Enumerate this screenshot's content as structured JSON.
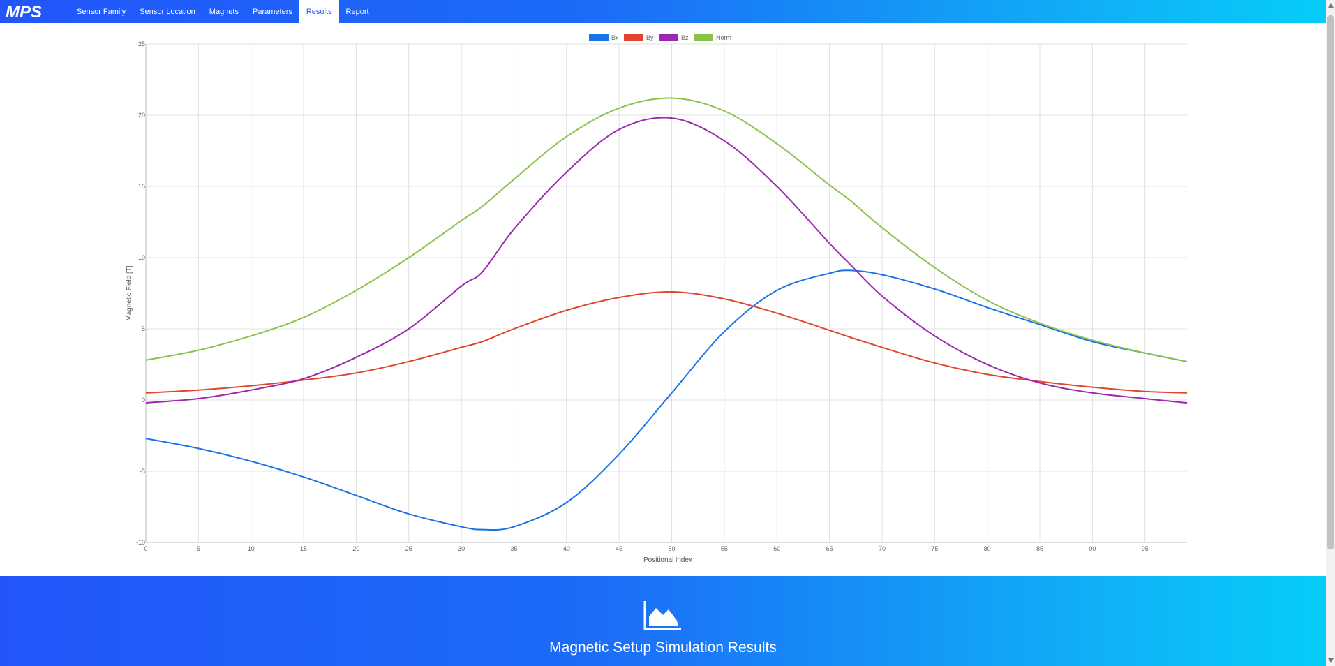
{
  "app": {
    "logo_text": "MPS",
    "nav": [
      {
        "label": "Sensor Family",
        "active": false
      },
      {
        "label": "Sensor Location",
        "active": false
      },
      {
        "label": "Magnets",
        "active": false
      },
      {
        "label": "Parameters",
        "active": false
      },
      {
        "label": "Results",
        "active": true
      },
      {
        "label": "Report",
        "active": false
      }
    ]
  },
  "footer": {
    "icon": "area-chart-icon",
    "title": "Magnetic Setup Simulation Results"
  },
  "colors": {
    "brand_start": "#2256fb",
    "brand_end": "#05cdf9",
    "Bx": "#1a73e8",
    "By": "#e0452e",
    "Bz": "#9c27b0",
    "Norm": "#8bc34a"
  },
  "chart_data": {
    "type": "line",
    "xlabel": "Positional index",
    "ylabel": "Magnetic Field [T]",
    "xlim": [
      0,
      99
    ],
    "ylim": [
      -10,
      25
    ],
    "x_ticks": [
      0,
      5,
      10,
      15,
      20,
      25,
      30,
      35,
      40,
      45,
      50,
      55,
      60,
      65,
      70,
      75,
      80,
      85,
      90,
      95
    ],
    "y_ticks": [
      -10,
      -5,
      0,
      5,
      10,
      15,
      20,
      25
    ],
    "grid": true,
    "legend_position": "top",
    "x": [
      0,
      5,
      10,
      15,
      20,
      25,
      30,
      32,
      35,
      40,
      45,
      50,
      55,
      60,
      65,
      67,
      70,
      75,
      80,
      85,
      90,
      95,
      99
    ],
    "series": [
      {
        "name": "Bx",
        "color": "#1a73e8",
        "values": [
          -2.7,
          -3.4,
          -4.3,
          -5.4,
          -6.7,
          -8.0,
          -8.9,
          -9.1,
          -8.9,
          -7.2,
          -3.8,
          0.5,
          4.8,
          7.7,
          8.9,
          9.1,
          8.8,
          7.8,
          6.5,
          5.3,
          4.1,
          3.3,
          2.7
        ]
      },
      {
        "name": "By",
        "color": "#e0452e",
        "values": [
          0.5,
          0.7,
          1.0,
          1.4,
          1.9,
          2.7,
          3.7,
          4.1,
          5.0,
          6.3,
          7.2,
          7.6,
          7.1,
          6.1,
          4.9,
          4.4,
          3.7,
          2.6,
          1.8,
          1.3,
          0.9,
          0.6,
          0.5
        ]
      },
      {
        "name": "Bz",
        "color": "#9c27b0",
        "values": [
          -0.2,
          0.1,
          0.7,
          1.5,
          3.0,
          5.0,
          8.0,
          9.0,
          12.0,
          16.0,
          19.0,
          19.8,
          18.2,
          15.0,
          11.0,
          9.5,
          7.3,
          4.5,
          2.5,
          1.2,
          0.5,
          0.1,
          -0.2
        ]
      },
      {
        "name": "Norm",
        "color": "#8bc34a",
        "values": [
          2.8,
          3.5,
          4.5,
          5.8,
          7.7,
          10.0,
          12.6,
          13.6,
          15.5,
          18.5,
          20.5,
          21.2,
          20.3,
          18.0,
          15.1,
          14.0,
          12.1,
          9.3,
          7.0,
          5.4,
          4.2,
          3.3,
          2.7
        ]
      }
    ]
  }
}
